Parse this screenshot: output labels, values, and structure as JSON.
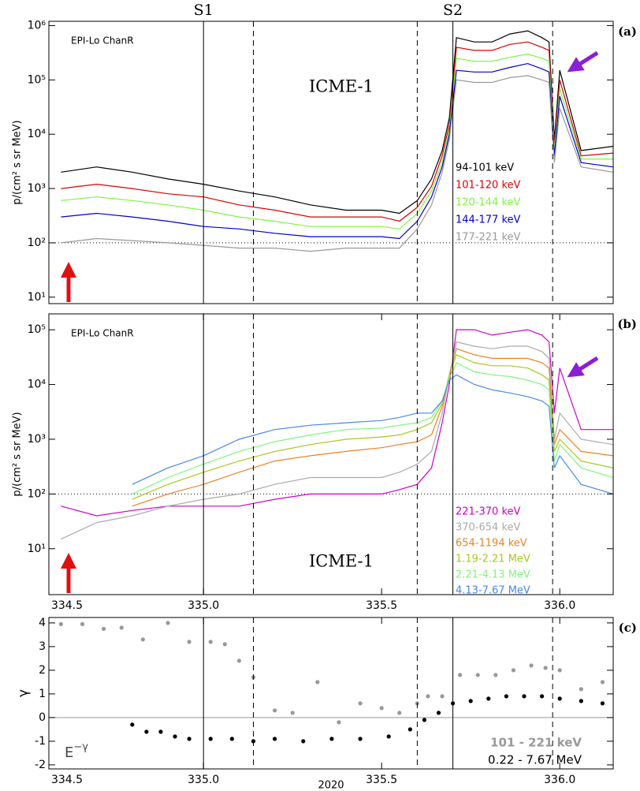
{
  "chart_data": [
    {
      "type": "line",
      "panel_label": "(a)",
      "instrument": "EPI-Lo ChanR",
      "region_label": "ICME-1",
      "ylabel": "p/(cm² s sr MeV)",
      "y_scale": "log",
      "xlim": [
        334.566,
        336.15
      ],
      "ylim": [
        7.6,
        1200000
      ],
      "yticks": [
        {
          "value": 10,
          "label": "10¹"
        },
        {
          "value": 100,
          "label": "10²"
        },
        {
          "value": 1000,
          "label": "10³"
        },
        {
          "value": 10000,
          "label": "10⁴"
        },
        {
          "value": 100000,
          "label": "10⁵"
        },
        {
          "value": 1000000,
          "label": "10⁶"
        }
      ],
      "hline": 100,
      "vlines": [
        335.0,
        335.14,
        335.6,
        335.7,
        335.98
      ],
      "vline_styles": [
        "solid",
        "dashed",
        "dashed",
        "solid",
        "dashed"
      ],
      "vline_labels": [
        "S1",
        null,
        null,
        "S2",
        null
      ],
      "x": [
        334.6,
        334.7,
        334.8,
        334.9,
        335.0,
        335.1,
        335.2,
        335.3,
        335.4,
        335.5,
        335.55,
        335.6,
        335.64,
        335.67,
        335.69,
        335.71,
        335.76,
        335.81,
        335.86,
        335.91,
        335.95,
        335.97,
        335.985,
        336.0,
        336.06,
        336.15
      ],
      "series": [
        {
          "name": "94-101 keV",
          "color": "#000000",
          "values": [
            2000,
            2500,
            2000,
            1500,
            1200,
            900,
            700,
            500,
            400,
            400,
            350,
            600,
            1500,
            5000,
            20000,
            600000,
            500000,
            500000,
            700000,
            800000,
            600000,
            500000,
            8000,
            150000,
            5000,
            6000
          ]
        },
        {
          "name": "101-120 keV",
          "color": "#dd0000",
          "values": [
            1000,
            1200,
            1000,
            800,
            700,
            500,
            400,
            300,
            300,
            300,
            250,
            450,
            1100,
            4000,
            15000,
            400000,
            350000,
            350000,
            450000,
            500000,
            400000,
            350000,
            6000,
            100000,
            4000,
            4500
          ]
        },
        {
          "name": "120-144 keV",
          "color": "#7ef542",
          "values": [
            600,
            700,
            600,
            500,
            400,
            300,
            250,
            200,
            200,
            200,
            180,
            350,
            900,
            3000,
            12000,
            250000,
            220000,
            220000,
            260000,
            300000,
            250000,
            220000,
            5000,
            70000,
            3500,
            3500
          ]
        },
        {
          "name": "144-177 keV",
          "color": "#0000cc",
          "values": [
            300,
            350,
            300,
            250,
            200,
            180,
            150,
            130,
            130,
            130,
            120,
            250,
            700,
            2500,
            10000,
            150000,
            140000,
            140000,
            170000,
            200000,
            160000,
            140000,
            4000,
            50000,
            3000,
            2500
          ]
        },
        {
          "name": "177-221 keV",
          "color": "#999999",
          "values": [
            100,
            120,
            110,
            100,
            90,
            80,
            80,
            70,
            80,
            80,
            80,
            180,
            500,
            2000,
            8000,
            100000,
            90000,
            90000,
            110000,
            120000,
            100000,
            90000,
            3000,
            30000,
            2500,
            2000
          ]
        }
      ]
    },
    {
      "type": "line",
      "panel_label": "(b)",
      "instrument": "EPI-Lo ChanR",
      "region_label": "ICME-1",
      "ylabel": "p/(cm² s sr MeV)",
      "y_scale": "log",
      "xlim": [
        334.566,
        336.15
      ],
      "ylim": [
        1.45,
        195000
      ],
      "yticks": [
        {
          "value": 10,
          "label": "10¹"
        },
        {
          "value": 100,
          "label": "10²"
        },
        {
          "value": 1000,
          "label": "10³"
        },
        {
          "value": 10000,
          "label": "10⁴"
        },
        {
          "value": 100000,
          "label": "10⁵"
        }
      ],
      "xticks": [
        334.5,
        {
          "value": 335,
          "label": "335.0"
        },
        335.5,
        {
          "value": 336,
          "label": "336.0"
        }
      ],
      "hline": 100,
      "vlines": [
        335.0,
        335.14,
        335.6,
        335.7,
        335.98
      ],
      "vline_styles": [
        "solid",
        "dashed",
        "dashed",
        "solid",
        "dashed"
      ],
      "x": [
        334.6,
        334.7,
        334.8,
        334.9,
        335.0,
        335.1,
        335.2,
        335.3,
        335.4,
        335.5,
        335.55,
        335.6,
        335.64,
        335.67,
        335.69,
        335.71,
        335.76,
        335.81,
        335.86,
        335.91,
        335.95,
        335.97,
        335.985,
        336.0,
        336.06,
        336.15
      ],
      "series": [
        {
          "name": "221-370 keV",
          "color": "#cc00cc",
          "values": [
            60,
            40,
            50,
            60,
            60,
            60,
            80,
            100,
            100,
            100,
            120,
            150,
            300,
            2000,
            10000,
            100000,
            100000,
            80000,
            90000,
            100000,
            80000,
            60000,
            3000,
            20000,
            1500,
            1500
          ]
        },
        {
          "name": "370-654 keV",
          "color": "#aaaaaa",
          "values": [
            15,
            30,
            40,
            60,
            80,
            100,
            150,
            200,
            200,
            200,
            250,
            350,
            600,
            3000,
            15000,
            60000,
            50000,
            45000,
            50000,
            50000,
            40000,
            30000,
            1000,
            3000,
            1000,
            800
          ]
        },
        {
          "name": "654-1194 keV",
          "color": "#e8822a",
          "values": [
            null,
            null,
            60,
            100,
            150,
            250,
            400,
            500,
            600,
            700,
            800,
            900,
            1200,
            4000,
            15000,
            45000,
            35000,
            30000,
            30000,
            30000,
            25000,
            20000,
            800,
            1500,
            600,
            500
          ]
        },
        {
          "name": "1.19-2.21 MeV",
          "color": "#a8c81e",
          "values": [
            null,
            null,
            80,
            150,
            250,
            400,
            600,
            800,
            1000,
            1100,
            1200,
            1500,
            2000,
            4500,
            15000,
            35000,
            25000,
            22000,
            22000,
            20000,
            15000,
            12000,
            600,
            1000,
            400,
            300
          ]
        },
        {
          "name": "2.21-4.13 MeV",
          "color": "#7ef57e",
          "values": [
            null,
            null,
            100,
            200,
            350,
            600,
            900,
            1200,
            1500,
            1600,
            1800,
            2000,
            2500,
            5000,
            13000,
            25000,
            17000,
            15000,
            14000,
            12000,
            10000,
            8000,
            400,
            800,
            300,
            200
          ]
        },
        {
          "name": "4.13-7.67 MeV",
          "color": "#4a88e8",
          "values": [
            null,
            null,
            150,
            300,
            500,
            1000,
            1500,
            1800,
            2000,
            2200,
            2500,
            3000,
            3000,
            5000,
            12000,
            15000,
            10000,
            8000,
            7000,
            6000,
            5000,
            4000,
            300,
            500,
            150,
            100
          ]
        }
      ]
    },
    {
      "type": "scatter",
      "panel_label": "(c)",
      "ylabel": "γ",
      "formula_base": "E",
      "formula_exp": "−γ",
      "xlabel": "2020",
      "xlim": [
        334.566,
        336.15
      ],
      "ylim": [
        -2.17,
        4.23
      ],
      "yticks": [
        -2,
        -1,
        0,
        1,
        2,
        3,
        4
      ],
      "xticks": [
        334.5,
        {
          "value": 335,
          "label": "335.0"
        },
        335.5,
        {
          "value": 336,
          "label": "336.0"
        }
      ],
      "hline": 0,
      "vlines": [
        335.0,
        335.14,
        335.6,
        335.7,
        335.98
      ],
      "vline_styles": [
        "solid",
        "dashed",
        "dashed",
        "solid",
        "dashed"
      ],
      "series": [
        {
          "name": "101 - 221 keV",
          "color": "#999999",
          "x": [
            334.6,
            334.66,
            334.72,
            334.77,
            334.83,
            334.9,
            334.96,
            335.02,
            335.06,
            335.1,
            335.14,
            335.2,
            335.25,
            335.32,
            335.38,
            335.44,
            335.5,
            335.55,
            335.6,
            335.63,
            335.67,
            335.72,
            335.77,
            335.82,
            335.87,
            335.92,
            335.96,
            336.0,
            336.06,
            336.12
          ],
          "values": [
            3.95,
            3.95,
            3.75,
            3.8,
            3.3,
            4.0,
            3.2,
            3.2,
            3.1,
            2.4,
            1.7,
            0.3,
            0.2,
            1.5,
            -0.2,
            0.6,
            0.4,
            0.2,
            0.6,
            0.9,
            0.9,
            1.8,
            1.8,
            1.8,
            2.0,
            2.2,
            2.1,
            2.0,
            1.2,
            1.5
          ]
        },
        {
          "name": "0.22 - 7.67 MeV",
          "color": "#000000",
          "x": [
            334.8,
            334.84,
            334.88,
            334.92,
            334.96,
            335.02,
            335.08,
            335.14,
            335.2,
            335.28,
            335.36,
            335.44,
            335.52,
            335.58,
            335.62,
            335.66,
            335.7,
            335.75,
            335.8,
            335.85,
            335.9,
            335.95,
            336.0,
            336.06,
            336.12
          ],
          "values": [
            -0.3,
            -0.6,
            -0.6,
            -0.8,
            -0.9,
            -0.9,
            -0.9,
            -1.0,
            -0.9,
            -1.0,
            -0.9,
            -0.9,
            -0.8,
            -0.5,
            -0.1,
            0.2,
            0.6,
            0.7,
            0.8,
            0.9,
            0.9,
            0.9,
            0.8,
            0.7,
            0.6
          ]
        }
      ]
    }
  ]
}
